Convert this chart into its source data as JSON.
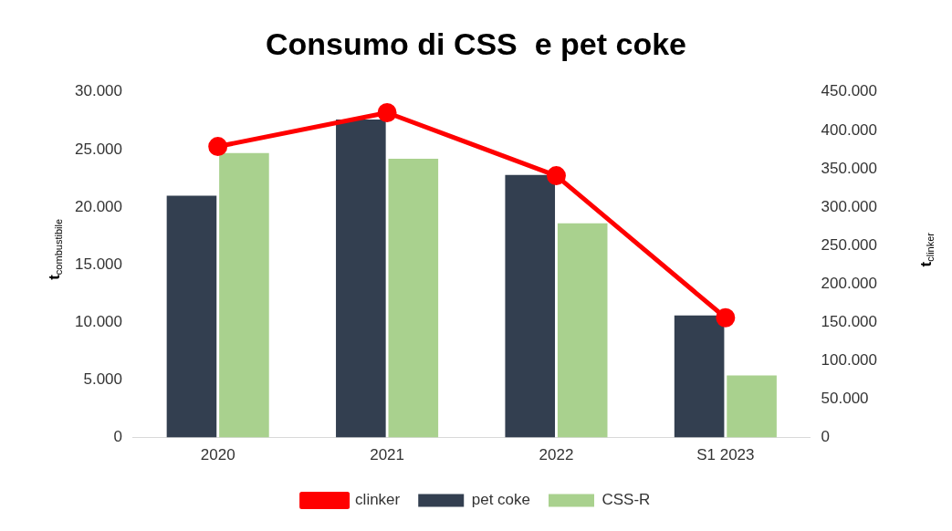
{
  "chart_data": {
    "type": "bar",
    "title": "Consumo di CSS  e pet coke",
    "categories": [
      "2020",
      "2021",
      "2022",
      "S1 2023"
    ],
    "series": [
      {
        "name": "pet coke",
        "color": "#333f50",
        "values": [
          21000,
          27600,
          22800,
          10600
        ]
      },
      {
        "name": "CSS-R",
        "color": "#a9d18e",
        "values": [
          24700,
          24200,
          18600,
          5400
        ]
      },
      {
        "name": "clinker",
        "type": "line",
        "axis": "y2",
        "color": "#ff0000",
        "values": [
          379000,
          423000,
          341000,
          156000
        ]
      }
    ],
    "ylabel": "t$_{combustibile}$",
    "y2label": "t$_{clinker}$",
    "ylim": [
      0,
      30000
    ],
    "yticks": [
      {
        "value": 0,
        "label": "0"
      },
      {
        "value": 5000,
        "label": "5.000"
      },
      {
        "value": 10000,
        "label": "10.000"
      },
      {
        "value": 15000,
        "label": "15.000"
      },
      {
        "value": 20000,
        "label": "20.000"
      },
      {
        "value": 25000,
        "label": "25.000"
      },
      {
        "value": 30000,
        "label": "30.000"
      }
    ],
    "y2lim": [
      0,
      450000
    ],
    "y2ticks": [
      {
        "value": 0,
        "label": "0"
      },
      {
        "value": 50000,
        "label": "50.000"
      },
      {
        "value": 100000,
        "label": "100.000"
      },
      {
        "value": 150000,
        "label": "150.000"
      },
      {
        "value": 200000,
        "label": "200.000"
      },
      {
        "value": 250000,
        "label": "250.000"
      },
      {
        "value": 300000,
        "label": "300.000"
      },
      {
        "value": 350000,
        "label": "350.000"
      },
      {
        "value": 400000,
        "label": "400.000"
      },
      {
        "value": 450000,
        "label": "450.000"
      }
    ],
    "legend": "bottom",
    "marker": "circle",
    "grid": false
  }
}
